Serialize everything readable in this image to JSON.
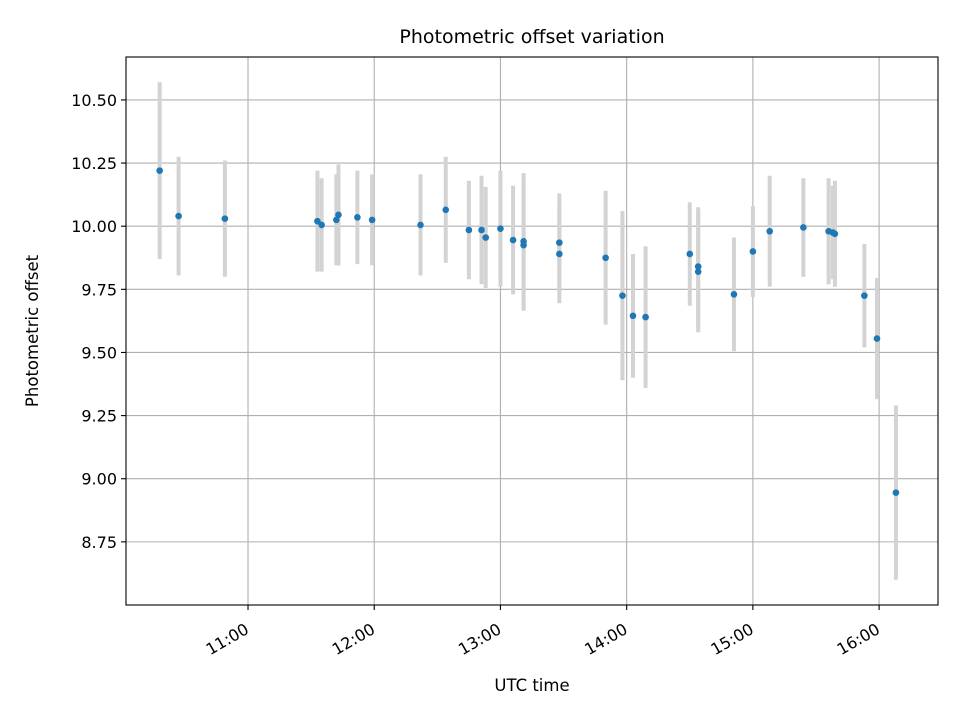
{
  "chart_data": {
    "type": "scatter",
    "title": "Photometric offset variation",
    "xlabel": "UTC time",
    "ylabel": "Photometric offset",
    "x_ticks": [
      "11:00",
      "12:00",
      "13:00",
      "14:00",
      "15:00",
      "16:00"
    ],
    "y_ticks": [
      "10.50",
      "10.25",
      "10.00",
      "9.75",
      "9.50",
      "9.25",
      "9.00",
      "8.75"
    ],
    "xlim": [
      "10:02",
      "16:28"
    ],
    "ylim": [
      8.5,
      10.67
    ],
    "grid": true,
    "marker_color": "#1f77b4",
    "errorbar_color": "#d3d3d3",
    "points": [
      {
        "x": "10:18",
        "y": 10.22,
        "err": 0.35
      },
      {
        "x": "10:27",
        "y": 10.04,
        "err": 0.235
      },
      {
        "x": "10:49",
        "y": 10.03,
        "err": 0.23
      },
      {
        "x": "11:33",
        "y": 10.02,
        "err": 0.2
      },
      {
        "x": "11:35",
        "y": 10.005,
        "err": 0.185
      },
      {
        "x": "11:42",
        "y": 10.025,
        "err": 0.18
      },
      {
        "x": "11:43",
        "y": 10.045,
        "err": 0.2
      },
      {
        "x": "11:52",
        "y": 10.035,
        "err": 0.185
      },
      {
        "x": "11:59",
        "y": 10.025,
        "err": 0.18
      },
      {
        "x": "12:22",
        "y": 10.005,
        "err": 0.2
      },
      {
        "x": "12:34",
        "y": 10.065,
        "err": 0.21
      },
      {
        "x": "12:45",
        "y": 9.985,
        "err": 0.195
      },
      {
        "x": "12:51",
        "y": 9.985,
        "err": 0.215
      },
      {
        "x": "12:53",
        "y": 9.955,
        "err": 0.2
      },
      {
        "x": "13:00",
        "y": 9.99,
        "err": 0.23
      },
      {
        "x": "13:06",
        "y": 9.945,
        "err": 0.215
      },
      {
        "x": "13:11",
        "y": 9.94,
        "err": 0.27
      },
      {
        "x": "13:11",
        "y": 9.925,
        "err": 0.26
      },
      {
        "x": "13:28",
        "y": 9.935,
        "err": 0.195
      },
      {
        "x": "13:28",
        "y": 9.89,
        "err": 0.195
      },
      {
        "x": "13:50",
        "y": 9.875,
        "err": 0.265
      },
      {
        "x": "13:58",
        "y": 9.725,
        "err": 0.335
      },
      {
        "x": "14:03",
        "y": 9.645,
        "err": 0.245
      },
      {
        "x": "14:09",
        "y": 9.64,
        "err": 0.28
      },
      {
        "x": "14:30",
        "y": 9.89,
        "err": 0.205
      },
      {
        "x": "14:34",
        "y": 9.84,
        "err": 0.235
      },
      {
        "x": "14:34",
        "y": 9.82,
        "err": 0.24
      },
      {
        "x": "14:51",
        "y": 9.73,
        "err": 0.225
      },
      {
        "x": "15:00",
        "y": 9.9,
        "err": 0.18
      },
      {
        "x": "15:08",
        "y": 9.98,
        "err": 0.22
      },
      {
        "x": "15:24",
        "y": 9.995,
        "err": 0.195
      },
      {
        "x": "15:36",
        "y": 9.98,
        "err": 0.21
      },
      {
        "x": "15:38",
        "y": 9.975,
        "err": 0.185
      },
      {
        "x": "15:39",
        "y": 9.97,
        "err": 0.21
      },
      {
        "x": "15:53",
        "y": 9.725,
        "err": 0.205
      },
      {
        "x": "15:59",
        "y": 9.555,
        "err": 0.24
      },
      {
        "x": "16:08",
        "y": 8.945,
        "err": 0.345
      }
    ]
  }
}
